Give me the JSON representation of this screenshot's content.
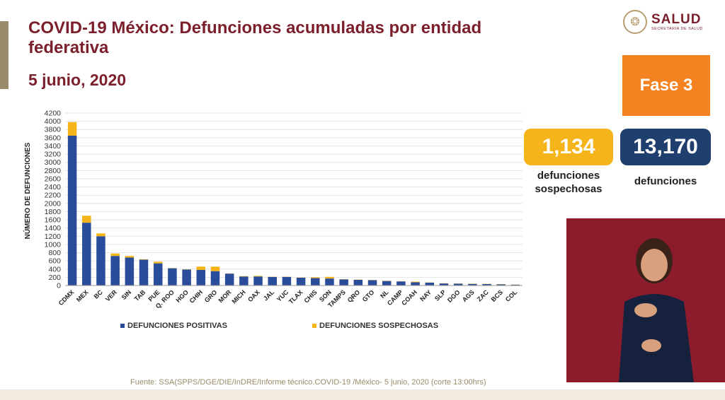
{
  "header": {
    "title": "COVID-19 México: Defunciones acumuladas por entidad federativa",
    "date": "5 junio, 2020"
  },
  "logo": {
    "name": "SALUD",
    "subtitle": "SECRETARÍA DE SALUD"
  },
  "phase": "Fase 3",
  "stats": {
    "suspected_value": "1,134",
    "suspected_label": "defunciones sospechosas",
    "total_value": "13,170",
    "total_label": "defunciones"
  },
  "source": "Fuente: SSA(SPPS/DGE/DIE/InDRE/Informe técnico.COVID-19 /México- 5 junio, 2020 (corte 13:00hrs)",
  "colors": {
    "positive": "#2a4d9b",
    "suspected": "#f5b41a",
    "title": "#7a1f2b",
    "phase": "#f58220",
    "total_card": "#1f3f6e"
  },
  "chart_data": {
    "type": "bar",
    "stacked": true,
    "title": "",
    "xlabel": "",
    "ylabel": "NÚMERO DE DEFUNCIONES",
    "ylim": [
      0,
      4200
    ],
    "ytick_step": 200,
    "categories": [
      "CDMX",
      "MEX",
      "BC",
      "VER",
      "SIN",
      "TAB",
      "PUE",
      "Q. ROO",
      "HGO",
      "CHIH",
      "GRO",
      "MOR",
      "MICH",
      "OAX",
      "JAL",
      "YUC",
      "TLAX",
      "CHIS",
      "SON",
      "TAMPS",
      "QRO",
      "GTO",
      "NL",
      "CAMP",
      "COAH",
      "NAY",
      "SLP",
      "DGO",
      "AGS",
      "ZAC",
      "BCS",
      "COL"
    ],
    "series": [
      {
        "name": "DEFUNCIONES POSITIVAS",
        "color": "#2a4d9b",
        "values": [
          3650,
          1530,
          1200,
          720,
          680,
          630,
          540,
          420,
          390,
          380,
          350,
          290,
          220,
          220,
          210,
          210,
          190,
          180,
          170,
          150,
          140,
          130,
          110,
          100,
          80,
          70,
          50,
          45,
          40,
          35,
          30,
          20
        ]
      },
      {
        "name": "DEFUNCIONES SOSPECHOSAS",
        "color": "#f5b41a",
        "values": [
          330,
          170,
          70,
          60,
          40,
          10,
          40,
          5,
          5,
          80,
          110,
          5,
          10,
          15,
          5,
          5,
          5,
          20,
          40,
          5,
          5,
          5,
          5,
          5,
          15,
          5,
          5,
          5,
          5,
          5,
          5,
          5
        ]
      }
    ],
    "legend_position": "bottom"
  }
}
